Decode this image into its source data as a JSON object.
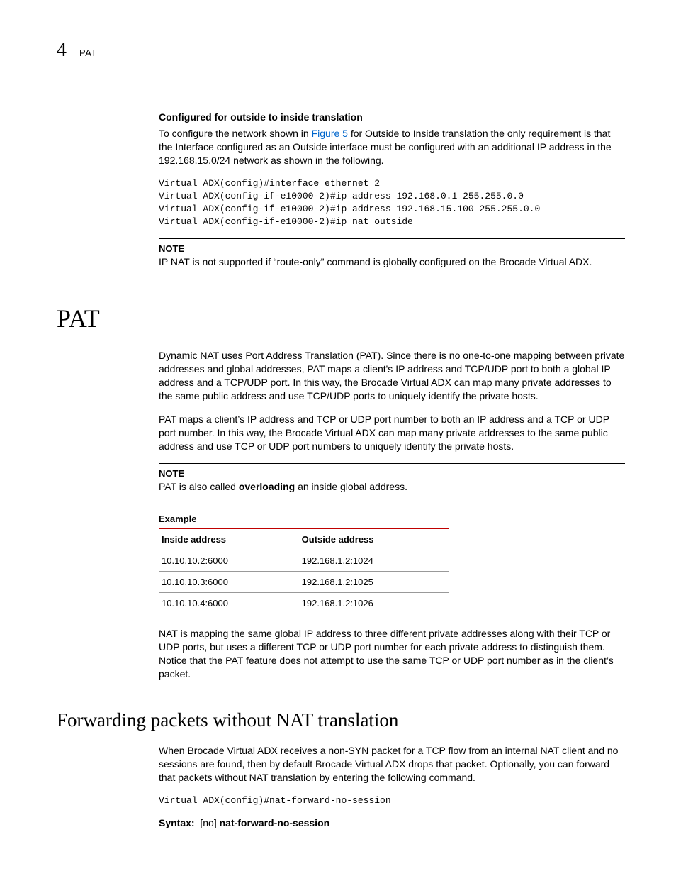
{
  "header": {
    "chapter_number": "4",
    "chapter_title": "PAT"
  },
  "section1": {
    "title": "Configured for outside to inside translation",
    "para_pre": "To configure the network shown in ",
    "figure_ref": "Figure 5",
    "para_post": " for Outside to Inside translation the only requirement is that the Interface configured as an Outside interface must be configured with an additional IP address in the 192.168.15.0/24 network as shown in the following.",
    "code": "Virtual ADX(config)#interface ethernet 2\nVirtual ADX(config-if-e10000-2)#ip address 192.168.0.1 255.255.0.0\nVirtual ADX(config-if-e10000-2)#ip address 192.168.15.100 255.255.0.0\nVirtual ADX(config-if-e10000-2)#ip nat outside",
    "note_label": "NOTE",
    "note_text": "IP NAT is not supported if “route-only” command is globally configured on the Brocade Virtual ADX."
  },
  "pat": {
    "heading": "PAT",
    "para1": "Dynamic NAT uses Port Address Translation (PAT). Since there is no one-to-one mapping between private addresses and global addresses, PAT maps a client's IP address and TCP/UDP port to both a global IP address and a TCP/UDP port. In this way, the Brocade Virtual ADX can map many private addresses to the same public address and use TCP/UDP ports to uniquely identify the private hosts.",
    "para2": "PAT maps a client’s IP address and TCP or UDP port number to both an IP address and a TCP or UDP port number. In this way, the Brocade Virtual ADX can map many private addresses to the same public address and use TCP or UDP port numbers to uniquely identify the private hosts.",
    "note_label": "NOTE",
    "note_pre": "PAT is also called ",
    "note_bold": "overloading",
    "note_post": " an inside global address.",
    "example_label": "Example",
    "table": {
      "headers": [
        "Inside address",
        "Outside address"
      ],
      "rows": [
        [
          "10.10.10.2:6000",
          "192.168.1.2:1024"
        ],
        [
          "10.10.10.3:6000",
          "192.168.1.2:1025"
        ],
        [
          "10.10.10.4:6000",
          "192.168.1.2:1026"
        ]
      ]
    },
    "para3": "NAT is mapping the same global IP address to three different private addresses along with their TCP or UDP ports, but uses a different TCP or UDP port number for each private address to distinguish them. Notice that the PAT feature does not attempt to use the same TCP or UDP port number as in the client’s packet."
  },
  "forwarding": {
    "heading": "Forwarding packets without NAT translation",
    "para": "When Brocade Virtual ADX receives a non-SYN packet for a TCP flow from an internal NAT client and no sessions are found, then by default Brocade Virtual ADX drops that packet. Optionally, you can forward that packets without NAT translation by entering the following command.",
    "code": "Virtual ADX(config)#nat-forward-no-session",
    "syntax_label": "Syntax:",
    "syntax_opt": "[no] ",
    "syntax_cmd": "nat-forward-no-session"
  }
}
